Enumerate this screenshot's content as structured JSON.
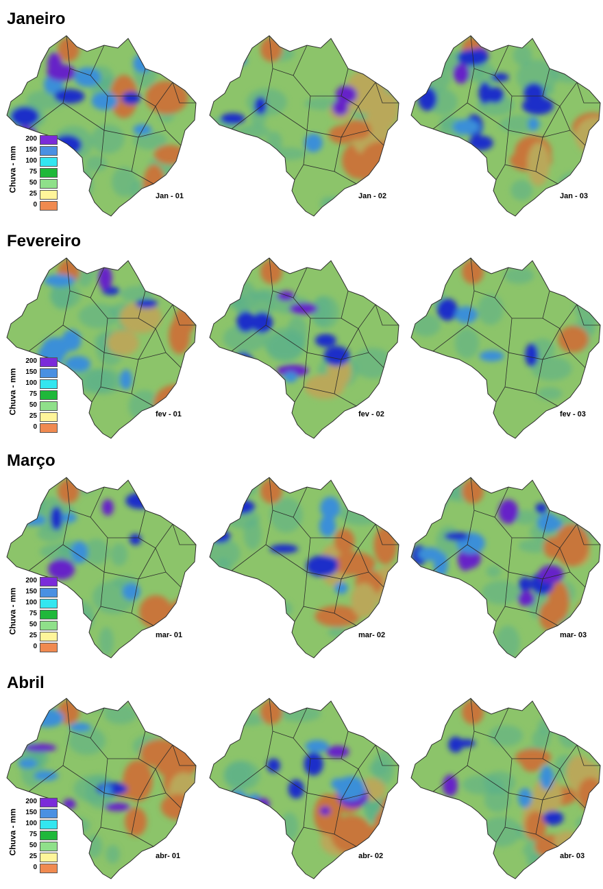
{
  "months": [
    {
      "title": "Janeiro",
      "panels": [
        {
          "label": "Jan - 01",
          "wet": 0.62,
          "dry_east": 0.3
        },
        {
          "label": "Jan - 02",
          "wet": 0.25,
          "dry_east": 0.75
        },
        {
          "label": "Jan - 03",
          "wet": 0.7,
          "dry_east": 0.35
        }
      ]
    },
    {
      "title": "Fevereiro",
      "panels": [
        {
          "label": "fev - 01",
          "wet": 0.5,
          "dry_east": 0.35
        },
        {
          "label": "fev - 02",
          "wet": 0.45,
          "dry_east": 0.15
        },
        {
          "label": "fev - 03",
          "wet": 0.2,
          "dry_east": 0.05
        }
      ]
    },
    {
      "title": "Março",
      "panels": [
        {
          "label": "mar- 01",
          "wet": 0.45,
          "dry_east": 0.15
        },
        {
          "label": "mar- 02",
          "wet": 0.35,
          "dry_east": 0.65
        },
        {
          "label": "mar- 03",
          "wet": 0.75,
          "dry_east": 0.45
        }
      ]
    },
    {
      "title": "Abril",
      "panels": [
        {
          "label": "abr- 01",
          "wet": 0.45,
          "dry_east": 0.55
        },
        {
          "label": "abr- 02",
          "wet": 0.65,
          "dry_east": 0.6
        },
        {
          "label": "abr- 03",
          "wet": 0.3,
          "dry_east": 0.85
        }
      ]
    }
  ],
  "legend": {
    "title": "Chuva - mm",
    "items": [
      {
        "value": "200",
        "color": "#7b2bd9"
      },
      {
        "value": "150",
        "color": "#4a90e2"
      },
      {
        "value": "100",
        "color": "#33e6f0"
      },
      {
        "value": "75",
        "color": "#1fb83a"
      },
      {
        "value": "50",
        "color": "#8fe08a"
      },
      {
        "value": "25",
        "color": "#fff59a"
      },
      {
        "value": "0",
        "color": "#f08a50"
      }
    ]
  },
  "palette": {
    "base": "#8cc46a",
    "mid": "#5ab08a",
    "wet_light": "#3a8fd8",
    "wet_dark": "#1f2fc9",
    "very_wet": "#6622c8",
    "dry": "#c8763a",
    "dry_light": "#b9a85a",
    "borders": "#2a2a2a"
  }
}
